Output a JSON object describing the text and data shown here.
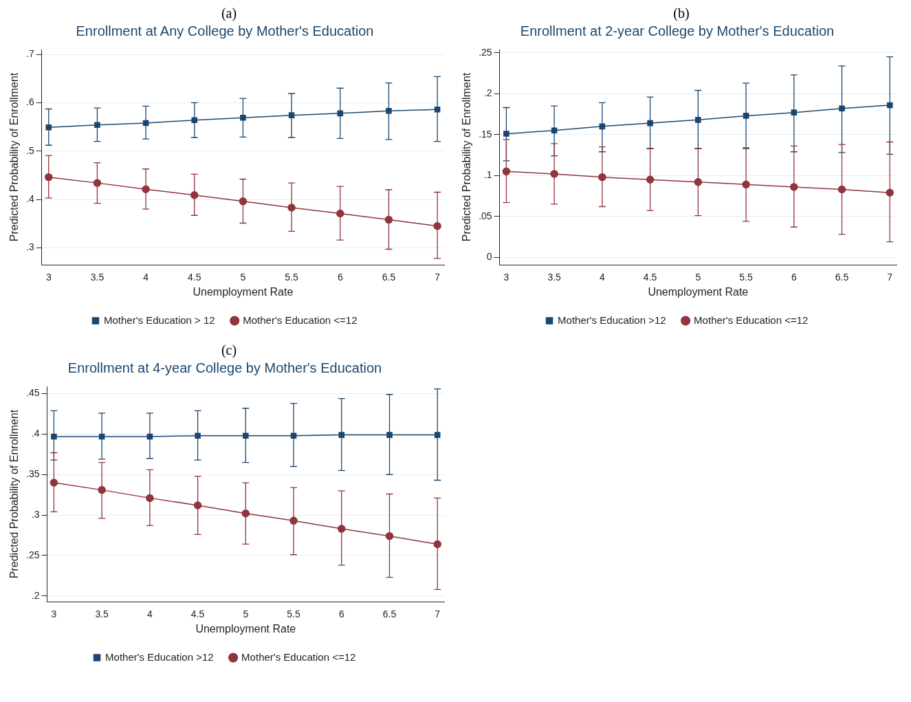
{
  "chart_data": [
    {
      "type": "line",
      "annotations": [
        "(a)"
      ],
      "title": "Enrollment at Any College by Mother's Education",
      "xlabel": "Unemployment Rate",
      "ylabel": "Predicted Probability of Enrollment",
      "x": [
        3,
        3.5,
        4,
        4.5,
        5,
        5.5,
        6,
        6.5,
        7
      ],
      "xlim": [
        2.93,
        7.07
      ],
      "xticks": [
        3,
        3.5,
        4,
        4.5,
        5,
        5.5,
        6,
        6.5,
        7
      ],
      "ylim": [
        0.265,
        0.71
      ],
      "yticks": [
        {
          "value": 0.3,
          "label": ".3"
        },
        {
          "value": 0.4,
          "label": ".4"
        },
        {
          "value": 0.5,
          "label": ".5"
        },
        {
          "value": 0.6,
          "label": ".6"
        },
        {
          "value": 0.7,
          "label": ".7"
        }
      ],
      "grid": "y",
      "legend": "bottom",
      "series": [
        {
          "name": "Mother's Education > 12",
          "color": "#1a476f",
          "marker": "square",
          "values": [
            0.549,
            0.554,
            0.558,
            0.564,
            0.569,
            0.574,
            0.578,
            0.583,
            0.586
          ],
          "errors": [
            [
              0.512,
              0.587
            ],
            [
              0.52,
              0.589
            ],
            [
              0.525,
              0.593
            ],
            [
              0.528,
              0.6
            ],
            [
              0.529,
              0.609
            ],
            [
              0.528,
              0.619
            ],
            [
              0.526,
              0.63
            ],
            [
              0.524,
              0.641
            ],
            [
              0.52,
              0.654
            ]
          ]
        },
        {
          "name": "Mother's Education <=12",
          "color": "#90353b",
          "marker": "circle",
          "values": [
            0.446,
            0.434,
            0.421,
            0.409,
            0.396,
            0.383,
            0.371,
            0.358,
            0.345
          ],
          "errors": [
            [
              0.403,
              0.491
            ],
            [
              0.392,
              0.476
            ],
            [
              0.38,
              0.463
            ],
            [
              0.367,
              0.452
            ],
            [
              0.351,
              0.442
            ],
            [
              0.334,
              0.434
            ],
            [
              0.316,
              0.427
            ],
            [
              0.297,
              0.42
            ],
            [
              0.278,
              0.415
            ]
          ]
        }
      ]
    },
    {
      "type": "line",
      "annotations": [
        "(b)"
      ],
      "title": "Enrollment at 2-year College by Mother's Education",
      "xlabel": "Unemployment Rate",
      "ylabel": "Predicted Probability of Enrollment",
      "x": [
        3,
        3.5,
        4,
        4.5,
        5,
        5.5,
        6,
        6.5,
        7
      ],
      "xlim": [
        2.93,
        7.07
      ],
      "xticks": [
        3,
        3.5,
        4,
        4.5,
        5,
        5.5,
        6,
        6.5,
        7
      ],
      "ylim": [
        -0.009,
        0.254
      ],
      "yticks": [
        0,
        {
          "value": 0.05,
          "label": ".05"
        },
        {
          "value": 0.1,
          "label": ".1"
        },
        {
          "value": 0.15,
          "label": ".15"
        },
        {
          "value": 0.2,
          "label": ".2"
        },
        {
          "value": 0.25,
          "label": ".25"
        }
      ],
      "grid": "y",
      "legend": "bottom",
      "series": [
        {
          "name": "Mother's Education >12",
          "color": "#1a476f",
          "marker": "square",
          "values": [
            0.151,
            0.155,
            0.16,
            0.164,
            0.168,
            0.173,
            0.177,
            0.182,
            0.186
          ],
          "errors": [
            [
              0.118,
              0.183
            ],
            [
              0.124,
              0.185
            ],
            [
              0.129,
              0.189
            ],
            [
              0.133,
              0.196
            ],
            [
              0.133,
              0.204
            ],
            [
              0.133,
              0.213
            ],
            [
              0.129,
              0.223
            ],
            [
              0.128,
              0.234
            ],
            [
              0.126,
              0.245
            ]
          ]
        },
        {
          "name": "Mother's Education <=12",
          "color": "#90353b",
          "marker": "circle",
          "values": [
            0.105,
            0.102,
            0.098,
            0.095,
            0.092,
            0.089,
            0.086,
            0.083,
            0.079
          ],
          "errors": [
            [
              0.067,
              0.144
            ],
            [
              0.065,
              0.139
            ],
            [
              0.062,
              0.135
            ],
            [
              0.057,
              0.133
            ],
            [
              0.051,
              0.133
            ],
            [
              0.044,
              0.134
            ],
            [
              0.037,
              0.136
            ],
            [
              0.028,
              0.138
            ],
            [
              0.019,
              0.141
            ]
          ]
        }
      ]
    },
    {
      "type": "line",
      "annotations": [
        "(c)"
      ],
      "title": "Enrollment at 4-year College by Mother's Education",
      "xlabel": "Unemployment Rate",
      "ylabel": "Predicted Probability of Enrollment",
      "x": [
        3,
        3.5,
        4,
        4.5,
        5,
        5.5,
        6,
        6.5,
        7
      ],
      "xlim": [
        2.93,
        7.07
      ],
      "xticks": [
        3,
        3.5,
        4,
        4.5,
        5,
        5.5,
        6,
        6.5,
        7
      ],
      "ylim": [
        0.193,
        0.459
      ],
      "yticks": [
        {
          "value": 0.2,
          "label": ".2"
        },
        {
          "value": 0.25,
          "label": ".25"
        },
        {
          "value": 0.3,
          "label": ".3"
        },
        {
          "value": 0.35,
          "label": ".35"
        },
        {
          "value": 0.4,
          "label": ".4"
        },
        {
          "value": 0.45,
          "label": ".45"
        }
      ],
      "grid": "y",
      "legend": "bottom",
      "series": [
        {
          "name": "Mother's Education >12",
          "color": "#1a476f",
          "marker": "square",
          "values": [
            0.397,
            0.397,
            0.397,
            0.398,
            0.398,
            0.398,
            0.399,
            0.399,
            0.399
          ],
          "errors": [
            [
              0.368,
              0.429
            ],
            [
              0.369,
              0.426
            ],
            [
              0.37,
              0.426
            ],
            [
              0.368,
              0.429
            ],
            [
              0.365,
              0.432
            ],
            [
              0.36,
              0.438
            ],
            [
              0.355,
              0.444
            ],
            [
              0.35,
              0.449
            ],
            [
              0.343,
              0.456
            ]
          ]
        },
        {
          "name": "Mother's Education <=12",
          "color": "#90353b",
          "marker": "circle",
          "values": [
            0.34,
            0.331,
            0.321,
            0.312,
            0.302,
            0.293,
            0.283,
            0.274,
            0.264
          ],
          "errors": [
            [
              0.304,
              0.377
            ],
            [
              0.296,
              0.365
            ],
            [
              0.287,
              0.356
            ],
            [
              0.276,
              0.348
            ],
            [
              0.264,
              0.34
            ],
            [
              0.251,
              0.334
            ],
            [
              0.238,
              0.33
            ],
            [
              0.223,
              0.326
            ],
            [
              0.208,
              0.321
            ]
          ]
        }
      ]
    }
  ]
}
